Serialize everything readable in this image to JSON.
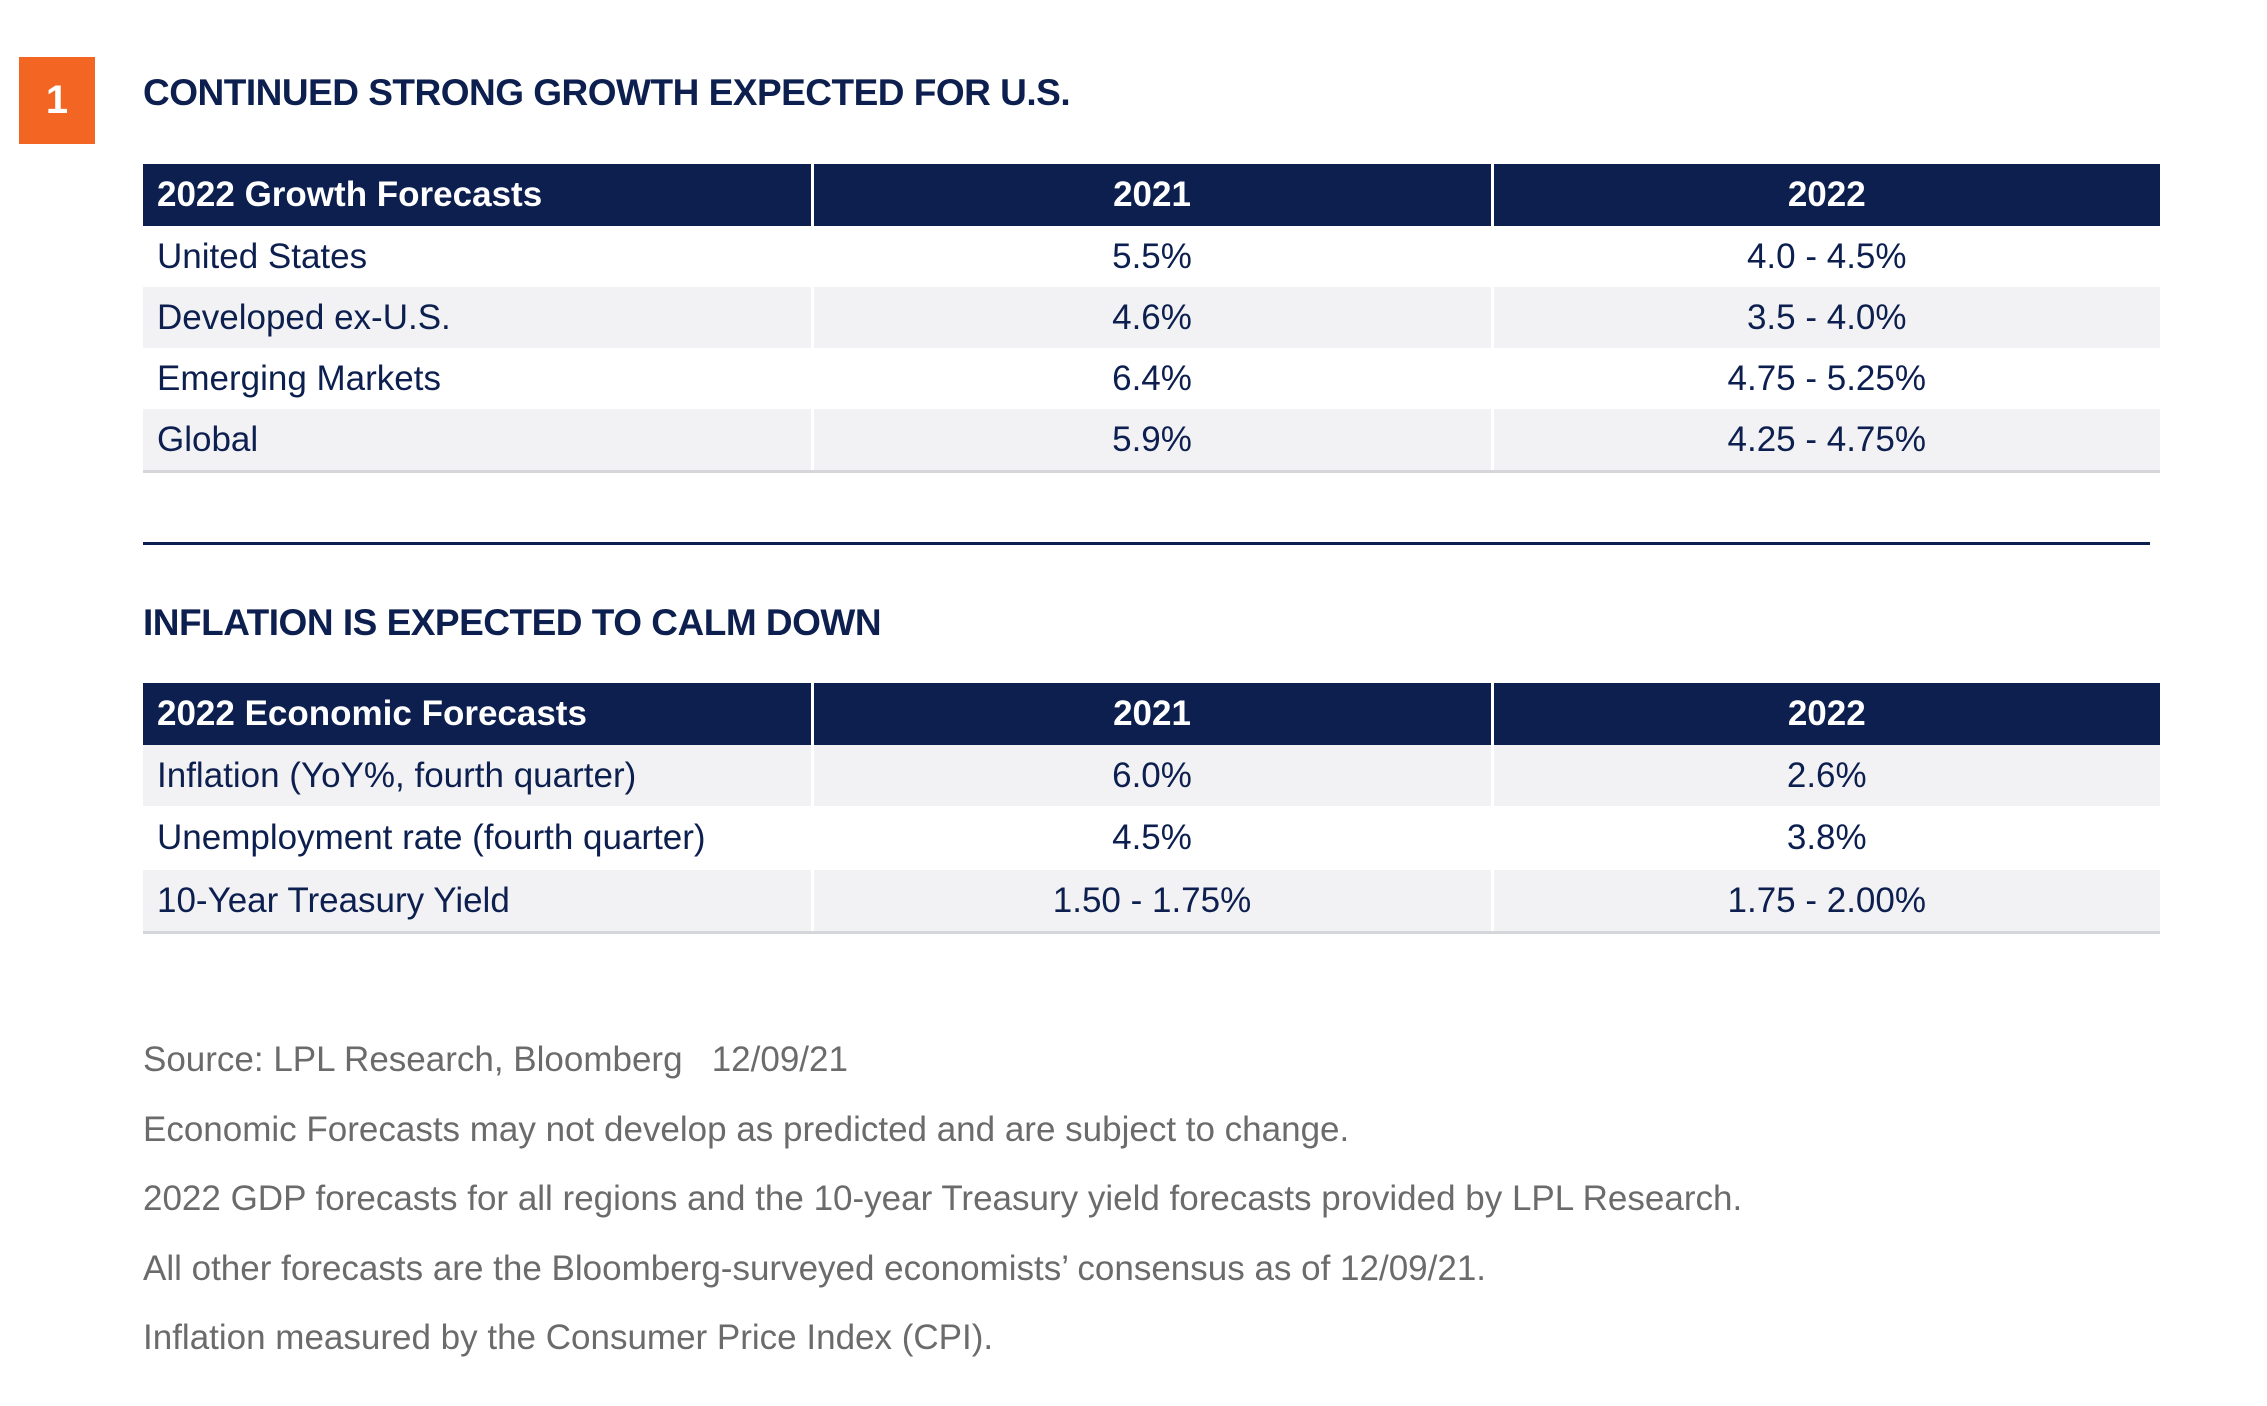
{
  "badge": "1",
  "section1": {
    "title": "CONTINUED STRONG GROWTH EXPECTED FOR U.S.",
    "headers": [
      "2022 Growth Forecasts",
      "2021",
      "2022"
    ],
    "rows": [
      [
        "United States",
        "5.5%",
        "4.0 - 4.5%"
      ],
      [
        "Developed ex-U.S.",
        "4.6%",
        "3.5 - 4.0%"
      ],
      [
        "Emerging Markets",
        "6.4%",
        "4.75 - 5.25%"
      ],
      [
        "Global",
        "5.9%",
        "4.25 - 4.75%"
      ]
    ]
  },
  "section2": {
    "title": "INFLATION IS EXPECTED TO CALM DOWN",
    "headers": [
      "2022 Economic Forecasts",
      "2021",
      "2022"
    ],
    "rows": [
      [
        "Inflation (YoY%, fourth quarter)",
        "6.0%",
        "2.6%"
      ],
      [
        "Unemployment rate (fourth quarter)",
        "4.5%",
        "3.8%"
      ],
      [
        "10-Year Treasury Yield",
        "1.50 - 1.75%",
        "1.75 - 2.00%"
      ]
    ]
  },
  "notes": [
    "Source: LPL Research, Bloomberg   12/09/21",
    "Economic Forecasts may not develop as predicted and are subject to change.",
    "2022 GDP forecasts for all regions and the 10-year Treasury yield forecasts provided by LPL Research.",
    "All other forecasts are the Bloomberg-surveyed economists’ consensus as of 12/09/21.",
    "Inflation measured by the Consumer Price Index (CPI)."
  ],
  "colors": {
    "navy": "#0c1f4f",
    "orange": "#f26522",
    "alt_row": "#f2f2f4",
    "note_text": "#6b6b6b"
  }
}
